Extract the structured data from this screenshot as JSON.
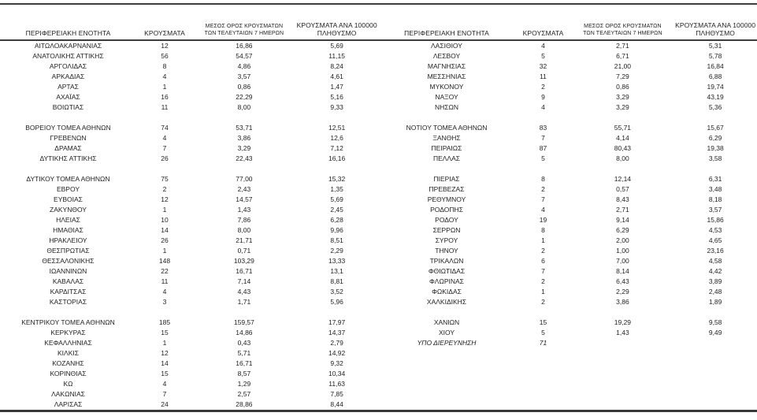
{
  "table": {
    "headers": {
      "region": "ΠΕΡΙΦΕΡΕΙΑΚΗ ΕΝΟΤΗΤΑ",
      "cases": "ΚΡΟΥΣΜΑΤΑ",
      "avg7_line1": "ΜΕΣΟΣ ΟΡΟΣ ΚΡΟΥΣΜΑΤΩΝ",
      "avg7_line2": "ΤΩΝ ΤΕΛΕΥΤΑΙΩΝ 7 ΗΜΕΡΩΝ",
      "per100k_line1": "ΚΡΟΥΣΜΑΤΑ ΑΝΑ 100000",
      "per100k_line2": "ΠΛΗΘΥΣΜΟ"
    },
    "colors": {
      "text": "#1f1f1f",
      "rule": "#3d3d3d",
      "background": "#ffffff"
    },
    "sides": {
      "left": {
        "groups": [
          [
            {
              "region": "ΑΙΤΩΛΟΑΚΑΡΝΑΝΙΑΣ",
              "cases": "12",
              "avg7": "16,86",
              "per100k": "5,69"
            },
            {
              "region": "ΑΝΑΤΟΛΙΚΗΣ ΑΤΤΙΚΗΣ",
              "cases": "56",
              "avg7": "54,57",
              "per100k": "11,15"
            },
            {
              "region": "ΑΡΓΟΛΙΔΑΣ",
              "cases": "8",
              "avg7": "4,86",
              "per100k": "8,24"
            },
            {
              "region": "ΑΡΚΑΔΙΑΣ",
              "cases": "4",
              "avg7": "3,57",
              "per100k": "4,61"
            },
            {
              "region": "ΑΡΤΑΣ",
              "cases": "1",
              "avg7": "0,86",
              "per100k": "1,47"
            },
            {
              "region": "ΑΧΑΪΑΣ",
              "cases": "16",
              "avg7": "22,29",
              "per100k": "5,16"
            },
            {
              "region": "ΒΟΙΩΤΙΑΣ",
              "cases": "11",
              "avg7": "8,00",
              "per100k": "9,33"
            }
          ],
          [
            {
              "region": "ΒΟΡΕΙΟΥ ΤΟΜΕΑ ΑΘΗΝΩΝ",
              "cases": "74",
              "avg7": "53,71",
              "per100k": "12,51"
            },
            {
              "region": "ΓΡΕΒΕΝΩΝ",
              "cases": "4",
              "avg7": "3,86",
              "per100k": "12,6"
            },
            {
              "region": "ΔΡΑΜΑΣ",
              "cases": "7",
              "avg7": "3,29",
              "per100k": "7,12"
            },
            {
              "region": "ΔΥΤΙΚΗΣ ΑΤΤΙΚΗΣ",
              "cases": "26",
              "avg7": "22,43",
              "per100k": "16,16"
            }
          ],
          [
            {
              "region": "ΔΥΤΙΚΟΥ ΤΟΜΕΑ ΑΘΗΝΩΝ",
              "cases": "75",
              "avg7": "77,00",
              "per100k": "15,32"
            },
            {
              "region": "ΕΒΡΟΥ",
              "cases": "2",
              "avg7": "2,43",
              "per100k": "1,35"
            },
            {
              "region": "ΕΥΒΟΙΑΣ",
              "cases": "12",
              "avg7": "14,57",
              "per100k": "5,69"
            },
            {
              "region": "ΖΑΚΥΝΘΟΥ",
              "cases": "1",
              "avg7": "1,43",
              "per100k": "2,45"
            },
            {
              "region": "ΗΛΕΙΑΣ",
              "cases": "10",
              "avg7": "7,86",
              "per100k": "6,28"
            },
            {
              "region": "ΗΜΑΘΙΑΣ",
              "cases": "14",
              "avg7": "8,00",
              "per100k": "9,96"
            },
            {
              "region": "ΗΡΑΚΛΕΙΟΥ",
              "cases": "26",
              "avg7": "21,71",
              "per100k": "8,51"
            },
            {
              "region": "ΘΕΣΠΡΩΤΙΑΣ",
              "cases": "1",
              "avg7": "0,71",
              "per100k": "2,29"
            },
            {
              "region": "ΘΕΣΣΑΛΟΝΙΚΗΣ",
              "cases": "148",
              "avg7": "103,29",
              "per100k": "13,33"
            },
            {
              "region": "ΙΩΑΝΝΙΝΩΝ",
              "cases": "22",
              "avg7": "16,71",
              "per100k": "13,1"
            },
            {
              "region": "ΚΑΒΑΛΑΣ",
              "cases": "11",
              "avg7": "7,14",
              "per100k": "8,81"
            },
            {
              "region": "ΚΑΡΔΙΤΣΑΣ",
              "cases": "4",
              "avg7": "4,43",
              "per100k": "3,52"
            },
            {
              "region": "ΚΑΣΤΟΡΙΑΣ",
              "cases": "3",
              "avg7": "1,71",
              "per100k": "5,96"
            }
          ],
          [
            {
              "region": "ΚΕΝΤΡΙΚΟΥ ΤΟΜΕΑ ΑΘΗΝΩΝ",
              "cases": "185",
              "avg7": "159,57",
              "per100k": "17,97"
            },
            {
              "region": "ΚΕΡΚΥΡΑΣ",
              "cases": "15",
              "avg7": "14,86",
              "per100k": "14,37"
            },
            {
              "region": "ΚΕΦΑΛΛΗΝΙΑΣ",
              "cases": "1",
              "avg7": "0,43",
              "per100k": "2,79"
            },
            {
              "region": "ΚΙΛΚΙΣ",
              "cases": "12",
              "avg7": "5,71",
              "per100k": "14,92"
            },
            {
              "region": "ΚΟΖΑΝΗΣ",
              "cases": "14",
              "avg7": "16,71",
              "per100k": "9,32"
            },
            {
              "region": "ΚΟΡΙΝΘΙΑΣ",
              "cases": "15",
              "avg7": "8,57",
              "per100k": "10,34"
            },
            {
              "region": "ΚΩ",
              "cases": "4",
              "avg7": "1,29",
              "per100k": "11,63"
            },
            {
              "region": "ΛΑΚΩΝΙΑΣ",
              "cases": "7",
              "avg7": "2,57",
              "per100k": "7,85"
            },
            {
              "region": "ΛΑΡΙΣΑΣ",
              "cases": "24",
              "avg7": "28,86",
              "per100k": "8,44"
            }
          ]
        ]
      },
      "right": {
        "groups": [
          [
            {
              "region": "ΛΑΣΙΘΙΟΥ",
              "cases": "4",
              "avg7": "2,71",
              "per100k": "5,31"
            },
            {
              "region": "ΛΕΣΒΟΥ",
              "cases": "5",
              "avg7": "6,71",
              "per100k": "5,78"
            },
            {
              "region": "ΜΑΓΝΗΣΙΑΣ",
              "cases": "32",
              "avg7": "21,00",
              "per100k": "16,84"
            },
            {
              "region": "ΜΕΣΣΗΝΙΑΣ",
              "cases": "11",
              "avg7": "7,29",
              "per100k": "6,88"
            },
            {
              "region": "ΜΥΚΟΝΟΥ",
              "cases": "2",
              "avg7": "0,86",
              "per100k": "19,74"
            },
            {
              "region": "ΝΑΞΟΥ",
              "cases": "9",
              "avg7": "3,29",
              "per100k": "43,19"
            },
            {
              "region": "ΝΗΣΩΝ",
              "cases": "4",
              "avg7": "3,29",
              "per100k": "5,36"
            }
          ],
          [
            {
              "region": "ΝΟΤΙΟΥ ΤΟΜΕΑ ΑΘΗΝΩΝ",
              "cases": "83",
              "avg7": "55,71",
              "per100k": "15,67"
            },
            {
              "region": "ΞΑΝΘΗΣ",
              "cases": "7",
              "avg7": "4,14",
              "per100k": "6,29"
            },
            {
              "region": "ΠΕΙΡΑΙΩΣ",
              "cases": "87",
              "avg7": "80,43",
              "per100k": "19,38"
            },
            {
              "region": "ΠΕΛΛΑΣ",
              "cases": "5",
              "avg7": "8,00",
              "per100k": "3,58"
            }
          ],
          [
            {
              "region": "ΠΙΕΡΙΑΣ",
              "cases": "8",
              "avg7": "12,14",
              "per100k": "6,31"
            },
            {
              "region": "ΠΡΕΒΕΖΑΣ",
              "cases": "2",
              "avg7": "0,57",
              "per100k": "3,48"
            },
            {
              "region": "ΡΕΘΥΜΝΟΥ",
              "cases": "7",
              "avg7": "8,43",
              "per100k": "8,18"
            },
            {
              "region": "ΡΟΔΟΠΗΣ",
              "cases": "4",
              "avg7": "2,71",
              "per100k": "3,57"
            },
            {
              "region": "ΡΟΔΟΥ",
              "cases": "19",
              "avg7": "9,14",
              "per100k": "15,86"
            },
            {
              "region": "ΣΕΡΡΩΝ",
              "cases": "8",
              "avg7": "6,29",
              "per100k": "4,53"
            },
            {
              "region": "ΣΥΡΟΥ",
              "cases": "1",
              "avg7": "2,00",
              "per100k": "4,65"
            },
            {
              "region": "ΤΗΝΟΥ",
              "cases": "2",
              "avg7": "1,00",
              "per100k": "23,16"
            },
            {
              "region": "ΤΡΙΚΑΛΩΝ",
              "cases": "6",
              "avg7": "7,00",
              "per100k": "4,58"
            },
            {
              "region": "ΦΘΙΩΤΙΔΑΣ",
              "cases": "7",
              "avg7": "8,14",
              "per100k": "4,42"
            },
            {
              "region": "ΦΛΩΡΙΝΑΣ",
              "cases": "2",
              "avg7": "6,43",
              "per100k": "3,89"
            },
            {
              "region": "ΦΩΚΙΔΑΣ",
              "cases": "1",
              "avg7": "2,29",
              "per100k": "2,48"
            },
            {
              "region": "ΧΑΛΚΙΔΙΚΗΣ",
              "cases": "2",
              "avg7": "3,86",
              "per100k": "1,89"
            }
          ],
          [
            {
              "region": "ΧΑΝΙΩΝ",
              "cases": "15",
              "avg7": "19,29",
              "per100k": "9,58"
            },
            {
              "region": "ΧΙΟΥ",
              "cases": "5",
              "avg7": "1,43",
              "per100k": "9,49"
            },
            {
              "region": "ΥΠΟ ΔΙΕΡΕΥΝΗΣΗ",
              "cases": "71",
              "avg7": "",
              "per100k": "",
              "italic": true
            }
          ]
        ]
      }
    }
  }
}
